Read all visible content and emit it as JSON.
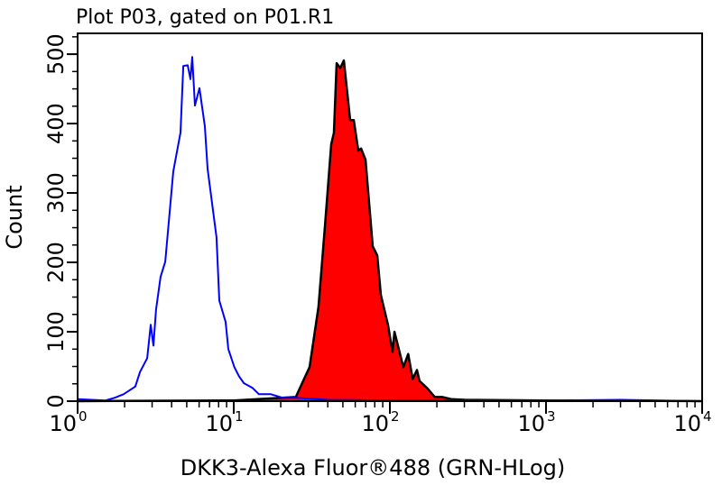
{
  "chart_data": {
    "type": "area",
    "title": "Plot P03, gated on P01.R1",
    "xlabel": "DKK3-Alexa Fluor®488 (GRN-HLog)",
    "ylabel": "Count",
    "xscale": "log",
    "xlim": [
      1,
      10000
    ],
    "ylim": [
      0,
      530
    ],
    "x_ticks": [
      {
        "base": "10",
        "exp": "0",
        "value": 1
      },
      {
        "base": "10",
        "exp": "1",
        "value": 10
      },
      {
        "base": "10",
        "exp": "2",
        "value": 100
      },
      {
        "base": "10",
        "exp": "3",
        "value": 1000
      },
      {
        "base": "10",
        "exp": "4",
        "value": 10000
      }
    ],
    "y_ticks": [
      "0",
      "100",
      "200",
      "300",
      "400",
      "500"
    ],
    "grid": false,
    "series": [
      {
        "style": "outline",
        "color": "#0000ff",
        "x": [
          1.0,
          1.51,
          1.73,
          1.97,
          2.34,
          2.51,
          2.79,
          2.94,
          3.06,
          3.18,
          3.4,
          3.64,
          4.1,
          4.56,
          4.75,
          5.07,
          5.28,
          5.42,
          5.64,
          6.03,
          6.53,
          6.8,
          7.76,
          8.08,
          8.87,
          9.23,
          10.1,
          10.8,
          11.6,
          13.2,
          14.5,
          17.3,
          20.5,
          24.7,
          40,
          100,
          300,
          1000,
          3000,
          10000
        ],
        "y": [
          3,
          1,
          5,
          10,
          21,
          42,
          62,
          110,
          80,
          132,
          179,
          201,
          331,
          387,
          483,
          484,
          464,
          496,
          426,
          451,
          396,
          335,
          236,
          145,
          114,
          75,
          49,
          36,
          26,
          19,
          10,
          10,
          5,
          5,
          2,
          1,
          1,
          1,
          2,
          0
        ]
      },
      {
        "style": "filled",
        "color": "#ff0000",
        "edge_color": "#000000",
        "x": [
          1,
          10,
          25.0,
          28.2,
          30.6,
          34.9,
          38.4,
          42.1,
          43.8,
          45.6,
          48.1,
          50.7,
          55.7,
          58.7,
          62.8,
          65.4,
          69.8,
          77.7,
          83.0,
          87.5,
          97.3,
          104,
          107,
          122,
          131,
          140,
          149,
          155,
          173,
          194,
          216,
          247,
          300,
          1000,
          10000
        ],
        "y": [
          0,
          1,
          6,
          32,
          49,
          136,
          253,
          370,
          387,
          487,
          480,
          491,
          405,
          405,
          361,
          364,
          348,
          223,
          210,
          153,
          110,
          71,
          100,
          49,
          68,
          32,
          45,
          29,
          19,
          6,
          6,
          3,
          2,
          1,
          0
        ]
      }
    ]
  }
}
